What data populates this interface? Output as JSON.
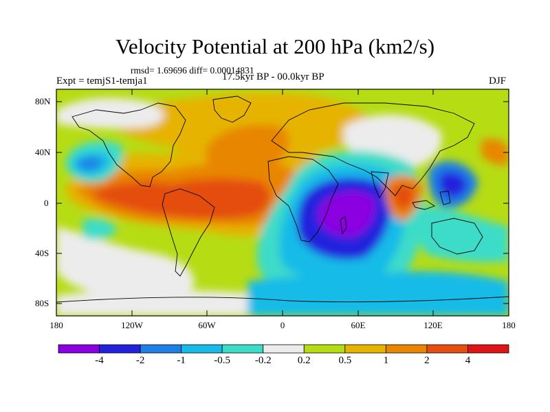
{
  "title": "Velocity Potential at 200 hPa (km2/s)",
  "stats_line": "rmsd= 1.69696 diff= 0.00014831",
  "experiment_label": "Expt = temjS1-temja1",
  "period_label": "17.5kyr BP - 00.0kyr BP",
  "season_label": "DJF",
  "lat_ticks": [
    "80N",
    "40N",
    "0",
    "40S",
    "80S"
  ],
  "lon_ticks": [
    "180",
    "120W",
    "60W",
    "0",
    "60E",
    "120E",
    "180"
  ],
  "colorbar": {
    "colors": [
      "#8b00e0",
      "#2222dd",
      "#1e80e6",
      "#18bbe8",
      "#3ddcc8",
      "#ececec",
      "#b6dc14",
      "#e6b400",
      "#e88600",
      "#e44e10",
      "#e01414"
    ],
    "labels": [
      "-4",
      "-2",
      "-1",
      "-0.5",
      "-0.2",
      "0.2",
      "0.5",
      "1",
      "2",
      "4"
    ]
  }
}
